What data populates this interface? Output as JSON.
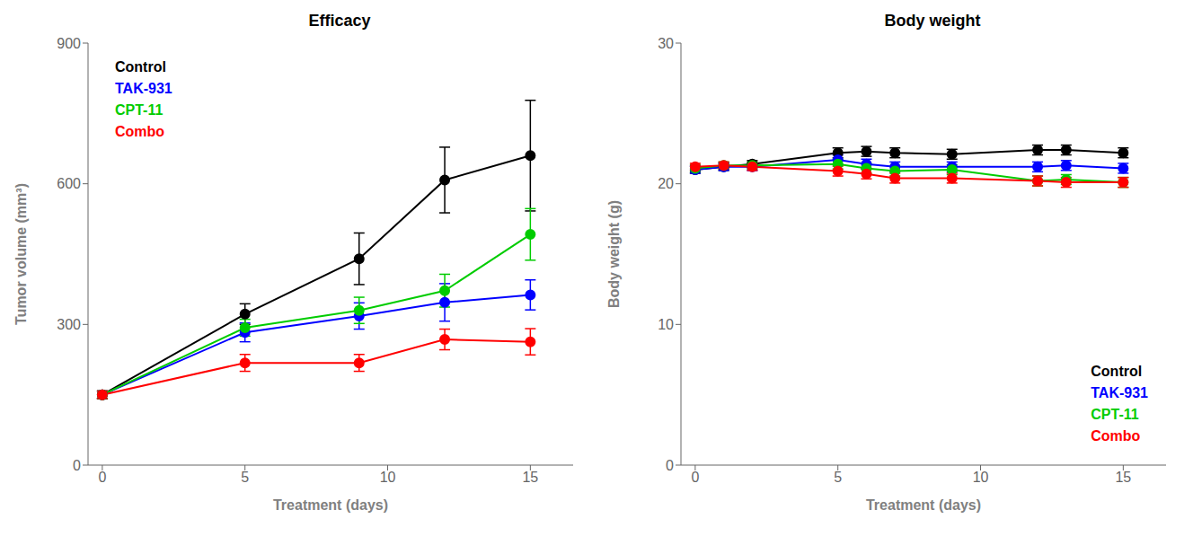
{
  "chart_data": [
    {
      "type": "line",
      "title": "Efficacy",
      "y_label": "Tumor volume (mm³)",
      "x_label": "Treatment (days)",
      "xlim": [
        -0.5,
        16.5
      ],
      "xticks": [
        0,
        5,
        10,
        15
      ],
      "ylim": [
        0,
        900
      ],
      "yticks": [
        0,
        300,
        600,
        900
      ],
      "grid": false,
      "legend": "upper left",
      "series": [
        {
          "name": "Control",
          "color": "#000000",
          "marker": "circle",
          "line_style": "solid",
          "x": [
            0,
            5,
            9,
            12,
            15
          ],
          "values": [
            150,
            322,
            440,
            608,
            660
          ],
          "errors": [
            8,
            22,
            55,
            70,
            118
          ]
        },
        {
          "name": "TAK-931",
          "color": "#0000FF",
          "marker": "circle",
          "line_style": "solid",
          "x": [
            0,
            5,
            9,
            12,
            15
          ],
          "values": [
            150,
            283,
            318,
            347,
            363
          ],
          "errors": [
            8,
            20,
            28,
            40,
            32
          ]
        },
        {
          "name": "CPT-11",
          "color": "#00CC00",
          "marker": "circle",
          "line_style": "solid",
          "x": [
            0,
            5,
            9,
            12,
            15
          ],
          "values": [
            150,
            293,
            330,
            372,
            492
          ],
          "errors": [
            8,
            18,
            28,
            35,
            55
          ]
        },
        {
          "name": "Combo",
          "color": "#FF0000",
          "marker": "circle",
          "line_style": "solid",
          "x": [
            0,
            5,
            9,
            12,
            15
          ],
          "values": [
            150,
            218,
            218,
            268,
            263
          ],
          "errors": [
            8,
            18,
            18,
            22,
            28
          ]
        }
      ]
    },
    {
      "type": "line",
      "title": "Body weight",
      "y_label": "Body weight  (g)",
      "x_label": "Treatment (days)",
      "xlim": [
        -0.5,
        16.5
      ],
      "xticks": [
        0,
        5,
        10,
        15
      ],
      "ylim": [
        0,
        30
      ],
      "yticks": [
        0,
        10,
        20,
        30
      ],
      "grid": false,
      "legend": "lower right",
      "series": [
        {
          "name": "Control",
          "color": "#000000",
          "marker": "circle",
          "line_style": "solid",
          "x": [
            0,
            1,
            2,
            5,
            6,
            7,
            9,
            12,
            13,
            15
          ],
          "values": [
            21.0,
            21.2,
            21.4,
            22.2,
            22.3,
            22.2,
            22.1,
            22.4,
            22.4,
            22.2
          ],
          "errors": [
            0.25,
            0.25,
            0.25,
            0.35,
            0.35,
            0.35,
            0.35,
            0.35,
            0.35,
            0.35
          ]
        },
        {
          "name": "TAK-931",
          "color": "#0000FF",
          "marker": "circle",
          "line_style": "solid",
          "x": [
            0,
            1,
            2,
            5,
            6,
            7,
            9,
            12,
            13,
            15
          ],
          "values": [
            21.0,
            21.2,
            21.2,
            21.7,
            21.4,
            21.2,
            21.2,
            21.2,
            21.3,
            21.1
          ],
          "errors": [
            0.25,
            0.25,
            0.25,
            0.35,
            0.35,
            0.35,
            0.35,
            0.35,
            0.35,
            0.35
          ]
        },
        {
          "name": "CPT-11",
          "color": "#00CC00",
          "marker": "circle",
          "line_style": "solid",
          "x": [
            0,
            1,
            2,
            5,
            6,
            7,
            9,
            12,
            13,
            15
          ],
          "values": [
            21.1,
            21.3,
            21.3,
            21.4,
            21.1,
            20.9,
            21.0,
            20.2,
            20.3,
            20.1
          ],
          "errors": [
            0.25,
            0.25,
            0.25,
            0.35,
            0.35,
            0.35,
            0.35,
            0.35,
            0.35,
            0.35
          ]
        },
        {
          "name": "Combo",
          "color": "#FF0000",
          "marker": "circle",
          "line_style": "solid",
          "x": [
            0,
            1,
            2,
            5,
            6,
            7,
            9,
            12,
            13,
            15
          ],
          "values": [
            21.2,
            21.3,
            21.2,
            20.9,
            20.7,
            20.4,
            20.4,
            20.2,
            20.1,
            20.1
          ],
          "errors": [
            0.25,
            0.25,
            0.25,
            0.35,
            0.35,
            0.35,
            0.35,
            0.35,
            0.35,
            0.35
          ]
        }
      ]
    }
  ]
}
